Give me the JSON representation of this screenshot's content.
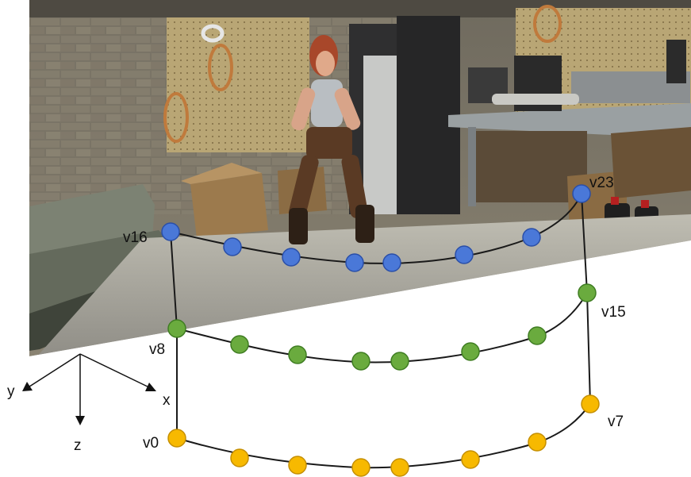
{
  "vertex_labels": {
    "v0": "v0",
    "v7": "v7",
    "v8": "v8",
    "v15": "v15",
    "v16": "v16",
    "v23": "v23"
  },
  "axes": {
    "x": "x",
    "y": "y",
    "z": "z"
  },
  "colors": {
    "blue_ring": "#4a78d8",
    "green_ring": "#6aab3e",
    "yellow_ring": "#f7b900",
    "curve": "#1a1a1a"
  }
}
